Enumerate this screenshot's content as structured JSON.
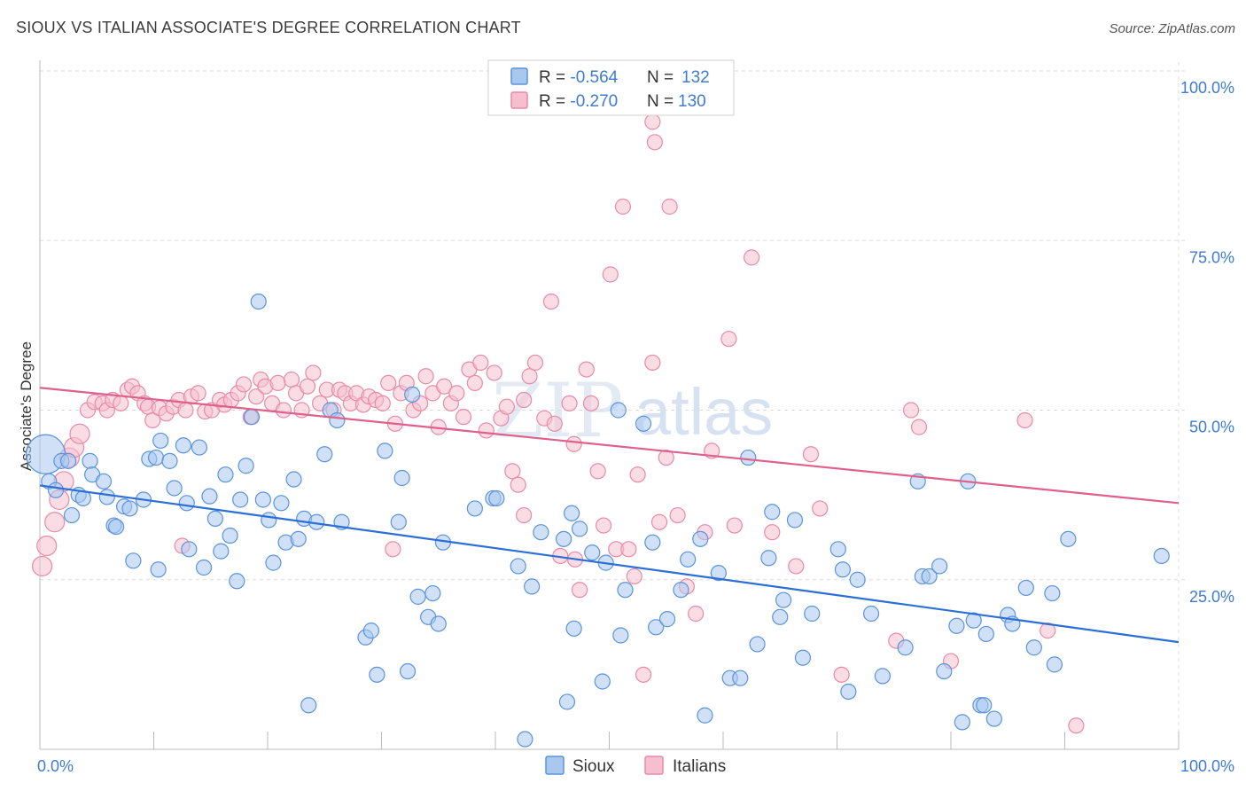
{
  "header": {
    "title": "SIOUX VS ITALIAN ASSOCIATE'S DEGREE CORRELATION CHART",
    "source": "Source: ZipAtlas.com"
  },
  "watermark": {
    "zip": "ZIP",
    "atlas": "atlas"
  },
  "colors": {
    "sioux_fill": "#a9c8f0",
    "sioux_stroke": "#5b93db",
    "sioux_line": "#2b6fd6",
    "italians_fill": "#f6bfd0",
    "italians_stroke": "#e98aa8",
    "italians_line": "#e0608c",
    "tick_text": "#3d7bd4",
    "grid": "#dddddd"
  },
  "chart_data": {
    "type": "scatter",
    "title": "SIOUX VS ITALIAN ASSOCIATE'S DEGREE CORRELATION CHART",
    "xlabel": "",
    "ylabel": "Associate's Degree",
    "xlim": [
      0,
      100
    ],
    "ylim": [
      0,
      100
    ],
    "x_tick_labels": [
      "0.0%",
      "100.0%"
    ],
    "y_ticks": [
      25,
      50,
      75,
      100
    ],
    "y_tick_labels": [
      "25.0%",
      "50.0%",
      "75.0%",
      "100.0%"
    ],
    "grid": true,
    "legend": {
      "position": "top-center",
      "rows": [
        {
          "series": "Sioux",
          "r_label": "R = ",
          "r_value": "-0.564",
          "n_label": "N = ",
          "n_value": "132"
        },
        {
          "series": "Italians",
          "r_label": "R = ",
          "r_value": "-0.270",
          "n_label": "N = ",
          "n_value": "130"
        }
      ]
    },
    "bottom_legend": [
      "Sioux",
      "Italians"
    ],
    "series": [
      {
        "name": "Sioux",
        "trendline": {
          "x": [
            0,
            100
          ],
          "y": [
            38.9,
            15.8
          ]
        },
        "points": [
          [
            0.5,
            43.5
          ],
          [
            0.8,
            39.5
          ],
          [
            1.4,
            38.2
          ],
          [
            1.9,
            42.5
          ],
          [
            2.5,
            42.5
          ],
          [
            2.8,
            34.5
          ],
          [
            3.4,
            37.5
          ],
          [
            3.8,
            37.0
          ],
          [
            4.4,
            42.5
          ],
          [
            4.6,
            40.5
          ],
          [
            5.6,
            39.5
          ],
          [
            5.9,
            37.2
          ],
          [
            6.5,
            33.0
          ],
          [
            6.7,
            32.8
          ],
          [
            7.4,
            35.8
          ],
          [
            7.9,
            35.5
          ],
          [
            8.2,
            27.8
          ],
          [
            9.1,
            36.8
          ],
          [
            9.6,
            42.8
          ],
          [
            10.2,
            43.0
          ],
          [
            10.4,
            26.5
          ],
          [
            10.6,
            45.5
          ],
          [
            11.4,
            42.5
          ],
          [
            11.8,
            38.5
          ],
          [
            12.6,
            44.8
          ],
          [
            12.9,
            36.3
          ],
          [
            13.1,
            29.5
          ],
          [
            14.0,
            44.5
          ],
          [
            14.4,
            26.8
          ],
          [
            14.9,
            37.3
          ],
          [
            15.4,
            34.0
          ],
          [
            15.9,
            29.2
          ],
          [
            16.3,
            40.5
          ],
          [
            16.7,
            31.5
          ],
          [
            17.3,
            24.8
          ],
          [
            17.6,
            36.8
          ],
          [
            18.1,
            41.8
          ],
          [
            18.6,
            49.0
          ],
          [
            19.2,
            66.0
          ],
          [
            19.6,
            36.8
          ],
          [
            20.1,
            33.8
          ],
          [
            20.5,
            27.5
          ],
          [
            21.2,
            36.3
          ],
          [
            21.6,
            30.5
          ],
          [
            22.3,
            39.8
          ],
          [
            22.7,
            31.0
          ],
          [
            23.2,
            34.0
          ],
          [
            23.6,
            6.5
          ],
          [
            24.3,
            33.5
          ],
          [
            25.0,
            43.5
          ],
          [
            25.5,
            50.0
          ],
          [
            26.1,
            48.5
          ],
          [
            26.5,
            33.5
          ],
          [
            28.6,
            16.5
          ],
          [
            29.1,
            17.5
          ],
          [
            29.6,
            11.0
          ],
          [
            30.3,
            44.0
          ],
          [
            31.5,
            33.5
          ],
          [
            31.8,
            40.0
          ],
          [
            32.3,
            11.5
          ],
          [
            32.7,
            52.3
          ],
          [
            33.2,
            22.5
          ],
          [
            34.1,
            19.5
          ],
          [
            34.5,
            23.0
          ],
          [
            35.0,
            18.5
          ],
          [
            35.4,
            30.5
          ],
          [
            38.2,
            35.5
          ],
          [
            39.8,
            37.0
          ],
          [
            40.1,
            37.0
          ],
          [
            42.0,
            27.0
          ],
          [
            42.6,
            1.5
          ],
          [
            43.2,
            24.0
          ],
          [
            44.0,
            32.0
          ],
          [
            46.0,
            31.0
          ],
          [
            46.3,
            7.0
          ],
          [
            46.7,
            34.8
          ],
          [
            46.9,
            17.8
          ],
          [
            47.4,
            32.5
          ],
          [
            48.5,
            29.0
          ],
          [
            49.4,
            10.0
          ],
          [
            49.7,
            27.5
          ],
          [
            50.8,
            50.0
          ],
          [
            51.0,
            16.8
          ],
          [
            51.4,
            23.5
          ],
          [
            53.0,
            48.0
          ],
          [
            53.8,
            30.5
          ],
          [
            54.1,
            18.0
          ],
          [
            55.1,
            19.2
          ],
          [
            56.3,
            23.5
          ],
          [
            56.9,
            28.0
          ],
          [
            58.0,
            31.0
          ],
          [
            58.4,
            5.0
          ],
          [
            59.6,
            26.0
          ],
          [
            60.6,
            10.5
          ],
          [
            61.5,
            10.5
          ],
          [
            62.2,
            43.0
          ],
          [
            63.0,
            15.5
          ],
          [
            64.0,
            28.2
          ],
          [
            64.3,
            35.0
          ],
          [
            65.0,
            19.5
          ],
          [
            65.3,
            22.0
          ],
          [
            66.3,
            33.8
          ],
          [
            67.0,
            13.5
          ],
          [
            67.8,
            20.0
          ],
          [
            70.1,
            29.5
          ],
          [
            70.5,
            26.5
          ],
          [
            71.0,
            8.5
          ],
          [
            71.8,
            25.0
          ],
          [
            73.0,
            20.0
          ],
          [
            74.0,
            10.8
          ],
          [
            76.0,
            15.0
          ],
          [
            77.1,
            39.5
          ],
          [
            77.5,
            25.5
          ],
          [
            78.1,
            25.5
          ],
          [
            79.0,
            27.0
          ],
          [
            79.4,
            11.5
          ],
          [
            80.5,
            18.2
          ],
          [
            81.0,
            4.0
          ],
          [
            81.5,
            39.5
          ],
          [
            82.0,
            19.0
          ],
          [
            82.6,
            6.5
          ],
          [
            82.9,
            6.5
          ],
          [
            83.1,
            17.0
          ],
          [
            83.8,
            4.5
          ],
          [
            85.0,
            19.8
          ],
          [
            85.4,
            18.5
          ],
          [
            86.6,
            23.8
          ],
          [
            87.3,
            15.0
          ],
          [
            88.9,
            23.0
          ],
          [
            89.1,
            12.5
          ],
          [
            90.3,
            31.0
          ],
          [
            98.5,
            28.5
          ]
        ]
      },
      {
        "name": "Italians",
        "trendline": {
          "x": [
            0,
            100
          ],
          "y": [
            53.3,
            36.3
          ]
        },
        "points": [
          [
            0.2,
            27.0
          ],
          [
            0.6,
            30.0
          ],
          [
            1.3,
            33.5
          ],
          [
            1.7,
            36.8
          ],
          [
            2.1,
            39.5
          ],
          [
            2.6,
            43.0
          ],
          [
            3.0,
            44.5
          ],
          [
            3.5,
            46.5
          ],
          [
            4.2,
            50.0
          ],
          [
            4.8,
            51.2
          ],
          [
            5.5,
            51.0
          ],
          [
            5.9,
            50.0
          ],
          [
            6.4,
            51.5
          ],
          [
            7.1,
            51.0
          ],
          [
            7.7,
            53.0
          ],
          [
            8.1,
            53.5
          ],
          [
            8.6,
            52.5
          ],
          [
            9.2,
            51.0
          ],
          [
            9.5,
            50.5
          ],
          [
            9.9,
            48.5
          ],
          [
            10.5,
            50.3
          ],
          [
            11.1,
            49.5
          ],
          [
            11.7,
            50.5
          ],
          [
            12.2,
            51.5
          ],
          [
            12.8,
            50.0
          ],
          [
            13.3,
            52.0
          ],
          [
            13.9,
            52.5
          ],
          [
            14.5,
            49.8
          ],
          [
            15.1,
            50.0
          ],
          [
            15.8,
            51.5
          ],
          [
            16.2,
            50.8
          ],
          [
            16.8,
            51.5
          ],
          [
            17.4,
            52.5
          ],
          [
            17.9,
            53.8
          ],
          [
            18.5,
            49.0
          ],
          [
            19.0,
            52.0
          ],
          [
            19.4,
            54.5
          ],
          [
            19.8,
            53.5
          ],
          [
            20.4,
            51.0
          ],
          [
            20.9,
            54.0
          ],
          [
            21.4,
            50.0
          ],
          [
            22.1,
            54.5
          ],
          [
            22.5,
            52.5
          ],
          [
            23.0,
            50.0
          ],
          [
            23.5,
            53.5
          ],
          [
            24.0,
            55.5
          ],
          [
            24.6,
            51.0
          ],
          [
            25.2,
            53.0
          ],
          [
            25.8,
            50.0
          ],
          [
            26.3,
            53.0
          ],
          [
            26.8,
            52.5
          ],
          [
            27.3,
            51.0
          ],
          [
            27.8,
            52.5
          ],
          [
            28.4,
            50.8
          ],
          [
            28.9,
            52.0
          ],
          [
            29.5,
            51.5
          ],
          [
            30.1,
            51.0
          ],
          [
            30.6,
            54.0
          ],
          [
            31.2,
            48.0
          ],
          [
            31.7,
            52.5
          ],
          [
            32.2,
            54.0
          ],
          [
            32.8,
            50.0
          ],
          [
            33.4,
            51.0
          ],
          [
            33.9,
            55.0
          ],
          [
            34.5,
            52.5
          ],
          [
            35.0,
            47.5
          ],
          [
            35.5,
            53.5
          ],
          [
            36.1,
            51.0
          ],
          [
            36.6,
            52.5
          ],
          [
            37.2,
            49.0
          ],
          [
            37.7,
            56.0
          ],
          [
            38.2,
            54.0
          ],
          [
            38.7,
            57.0
          ],
          [
            39.2,
            47.0
          ],
          [
            39.9,
            55.5
          ],
          [
            40.5,
            48.8
          ],
          [
            41.0,
            50.5
          ],
          [
            41.5,
            41.0
          ],
          [
            42.0,
            39.0
          ],
          [
            42.5,
            51.5
          ],
          [
            43.0,
            55.0
          ],
          [
            43.5,
            57.0
          ],
          [
            44.3,
            48.8
          ],
          [
            44.9,
            66.0
          ],
          [
            45.2,
            48.0
          ],
          [
            45.7,
            28.5
          ],
          [
            46.5,
            51.0
          ],
          [
            46.9,
            45.0
          ],
          [
            47.4,
            23.5
          ],
          [
            48.0,
            56.0
          ],
          [
            48.4,
            51.0
          ],
          [
            49.0,
            41.0
          ],
          [
            49.5,
            33.0
          ],
          [
            50.1,
            70.0
          ],
          [
            50.6,
            29.5
          ],
          [
            51.2,
            80.0
          ],
          [
            51.7,
            29.5
          ],
          [
            52.2,
            25.5
          ],
          [
            52.5,
            40.5
          ],
          [
            53.0,
            11.0
          ],
          [
            53.8,
            57.0
          ],
          [
            54.4,
            33.5
          ],
          [
            55.0,
            43.0
          ],
          [
            55.3,
            80.0
          ],
          [
            56.0,
            34.5
          ],
          [
            56.8,
            24.0
          ],
          [
            57.6,
            20.0
          ],
          [
            58.4,
            32.0
          ],
          [
            59.0,
            44.0
          ],
          [
            60.5,
            60.5
          ],
          [
            61.0,
            33.0
          ],
          [
            62.5,
            72.5
          ],
          [
            64.3,
            32.0
          ],
          [
            66.4,
            27.0
          ],
          [
            67.7,
            43.5
          ],
          [
            68.5,
            35.5
          ],
          [
            70.4,
            11.0
          ],
          [
            75.2,
            16.0
          ],
          [
            76.5,
            50.0
          ],
          [
            77.2,
            47.5
          ],
          [
            80.0,
            13.0
          ],
          [
            86.5,
            48.5
          ],
          [
            88.5,
            17.5
          ],
          [
            91.0,
            3.5
          ],
          [
            54.0,
            89.5
          ],
          [
            53.8,
            92.5
          ],
          [
            42.5,
            34.5
          ],
          [
            47.0,
            28.0
          ],
          [
            31.0,
            29.5
          ],
          [
            12.5,
            30.0
          ]
        ]
      }
    ]
  }
}
